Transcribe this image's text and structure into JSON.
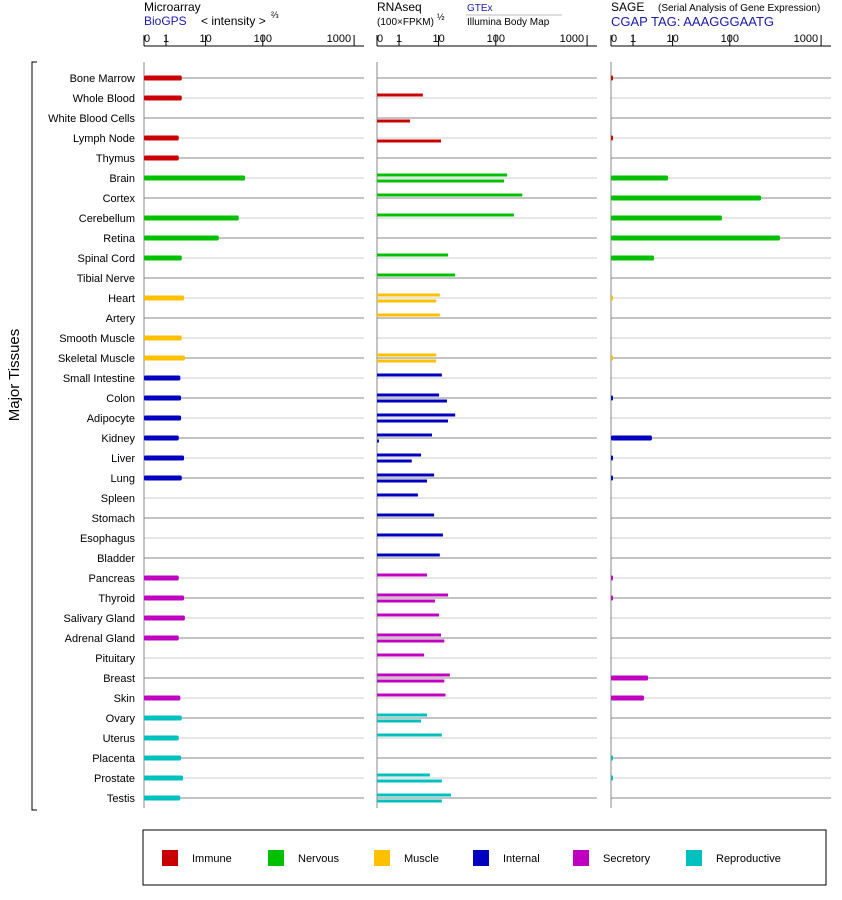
{
  "headers": {
    "microarray": {
      "title": "Microarray",
      "source": "BioGPS",
      "scale": "< intensity >",
      "scale_exp": "⅔"
    },
    "rnaseq": {
      "title": "RNAseq",
      "scale": "(100×FPKM)",
      "scale_exp": "½",
      "source_top": "GTEx",
      "source_bottom": "Illumina Body Map"
    },
    "sage": {
      "title": "SAGE",
      "subtitle": "(Serial Analysis of Gene Expression)",
      "tag": "CGAP TAG: AAAGGGAATG"
    }
  },
  "y_group_label": "Major Tissues",
  "colors": {
    "Immune": "#c80000",
    "Nervous": "#00c000",
    "Muscle": "#ffc000",
    "Internal": "#0000c0",
    "Secretory": "#c000c0",
    "Reproductive": "#00c0c0"
  },
  "legend": [
    "Immune",
    "Nervous",
    "Muscle",
    "Internal",
    "Secretory",
    "Reproductive"
  ],
  "chart_data": {
    "type": "bar",
    "orientation": "horizontal",
    "axis_ticks": [
      "0",
      "1",
      "10",
      "100",
      "1000"
    ],
    "axis_tick_values": [
      0,
      1,
      10,
      100,
      1000
    ],
    "xlim": [
      0,
      1000
    ],
    "panels": [
      "microarray",
      "gtex",
      "illumina",
      "sage"
    ],
    "tissues": [
      {
        "name": "Bone Marrow",
        "group": "Immune",
        "microarray": 2.5,
        "gtex": null,
        "illumina": null,
        "sage": 0.05
      },
      {
        "name": "Whole Blood",
        "group": "Immune",
        "microarray": 2.5,
        "gtex": 4.0,
        "illumina": null,
        "sage": null
      },
      {
        "name": "White Blood Cells",
        "group": "Immune",
        "microarray": null,
        "gtex": null,
        "illumina": 1.9,
        "sage": null
      },
      {
        "name": "Lymph Node",
        "group": "Immune",
        "microarray": 2.1,
        "gtex": null,
        "illumina": 11,
        "sage": 0.05
      },
      {
        "name": "Thymus",
        "group": "Immune",
        "microarray": 2.1,
        "gtex": null,
        "illumina": null,
        "sage": null
      },
      {
        "name": "Brain",
        "group": "Nervous",
        "microarray": 49,
        "gtex": 133,
        "illumina": 123,
        "sage": 7.7
      },
      {
        "name": "Cortex",
        "group": "Nervous",
        "microarray": null,
        "gtex": 195,
        "illumina": null,
        "sage": 220
      },
      {
        "name": "Cerebellum",
        "group": "Nervous",
        "microarray": 38,
        "gtex": 158,
        "illumina": null,
        "sage": 73
      },
      {
        "name": "Retina",
        "group": "Nervous",
        "microarray": 17,
        "gtex": null,
        "illumina": null,
        "sage": 355
      },
      {
        "name": "Spinal Cord",
        "group": "Nervous",
        "microarray": 2.5,
        "gtex": 14.6,
        "illumina": null,
        "sage": 3.4
      },
      {
        "name": "Tibial Nerve",
        "group": "Nervous",
        "microarray": null,
        "gtex": 19.5,
        "illumina": null,
        "sage": null
      },
      {
        "name": "Heart",
        "group": "Muscle",
        "microarray": 2.85,
        "gtex": 10.5,
        "illumina": 8.7,
        "sage": 0.05
      },
      {
        "name": "Artery",
        "group": "Muscle",
        "microarray": null,
        "gtex": 10.5,
        "illumina": null,
        "sage": null
      },
      {
        "name": "Smooth Muscle",
        "group": "Muscle",
        "microarray": 2.5,
        "gtex": null,
        "illumina": null,
        "sage": null
      },
      {
        "name": "Skeletal Muscle",
        "group": "Muscle",
        "microarray": 3.0,
        "gtex": 8.7,
        "illumina": 8.7,
        "sage": 0.05
      },
      {
        "name": "Small Intestine",
        "group": "Internal",
        "microarray": 2.3,
        "gtex": 11.4,
        "illumina": null,
        "sage": null
      },
      {
        "name": "Colon",
        "group": "Internal",
        "microarray": 2.4,
        "gtex": 10.2,
        "illumina": 14,
        "sage": 0.05
      },
      {
        "name": "Adipocyte",
        "group": "Internal",
        "microarray": 2.4,
        "gtex": 19.5,
        "illumina": 14.6,
        "sage": null
      },
      {
        "name": "Kidney",
        "group": "Internal",
        "microarray": 2.1,
        "gtex": 6.8,
        "illumina": 0.09,
        "sage": 3.0
      },
      {
        "name": "Liver",
        "group": "Internal",
        "microarray": 2.85,
        "gtex": 3.6,
        "illumina": 2.1,
        "sage": 0.05
      },
      {
        "name": "Lung",
        "group": "Internal",
        "microarray": 2.5,
        "gtex": 7.7,
        "illumina": 5.1,
        "sage": 0.05
      },
      {
        "name": "Spleen",
        "group": "Internal",
        "microarray": null,
        "gtex": 3.0,
        "illumina": null,
        "sage": null
      },
      {
        "name": "Stomach",
        "group": "Internal",
        "microarray": null,
        "gtex": 7.7,
        "illumina": null,
        "sage": null
      },
      {
        "name": "Esophagus",
        "group": "Internal",
        "microarray": null,
        "gtex": 11.9,
        "illumina": null,
        "sage": null
      },
      {
        "name": "Bladder",
        "group": "Internal",
        "microarray": null,
        "gtex": 10.5,
        "illumina": null,
        "sage": null
      },
      {
        "name": "Pancreas",
        "group": "Secretory",
        "microarray": 2.1,
        "gtex": 5.1,
        "illumina": null,
        "sage": 0.05
      },
      {
        "name": "Thyroid",
        "group": "Secretory",
        "microarray": 2.85,
        "gtex": 14.6,
        "illumina": 8.1,
        "sage": 0.05
      },
      {
        "name": "Salivary Gland",
        "group": "Secretory",
        "microarray": 3.0,
        "gtex": 10.2,
        "illumina": null,
        "sage": null
      },
      {
        "name": "Adrenal Gland",
        "group": "Secretory",
        "microarray": 2.1,
        "gtex": 11,
        "illumina": 12.6,
        "sage": null
      },
      {
        "name": "Pituitary",
        "group": "Secretory",
        "microarray": null,
        "gtex": 4.3,
        "illumina": null,
        "sage": null
      },
      {
        "name": "Breast",
        "group": "Secretory",
        "microarray": null,
        "gtex": 15.7,
        "illumina": 12.6,
        "sage": 2.4
      },
      {
        "name": "Skin",
        "group": "Secretory",
        "microarray": 2.3,
        "gtex": 13.2,
        "illumina": null,
        "sage": 1.9
      },
      {
        "name": "Ovary",
        "group": "Reproductive",
        "microarray": 2.5,
        "gtex": 5.1,
        "illumina": 3.6,
        "sage": null
      },
      {
        "name": "Uterus",
        "group": "Reproductive",
        "microarray": 2.1,
        "gtex": 11.4,
        "illumina": null,
        "sage": null
      },
      {
        "name": "Placenta",
        "group": "Reproductive",
        "microarray": 2.4,
        "gtex": null,
        "illumina": null,
        "sage": 0.05
      },
      {
        "name": "Prostate",
        "group": "Reproductive",
        "microarray": 2.7,
        "gtex": 6.0,
        "illumina": 11.4,
        "sage": 0.05
      },
      {
        "name": "Testis",
        "group": "Reproductive",
        "microarray": 2.3,
        "gtex": 16.5,
        "illumina": 11.4,
        "sage": null
      }
    ]
  }
}
